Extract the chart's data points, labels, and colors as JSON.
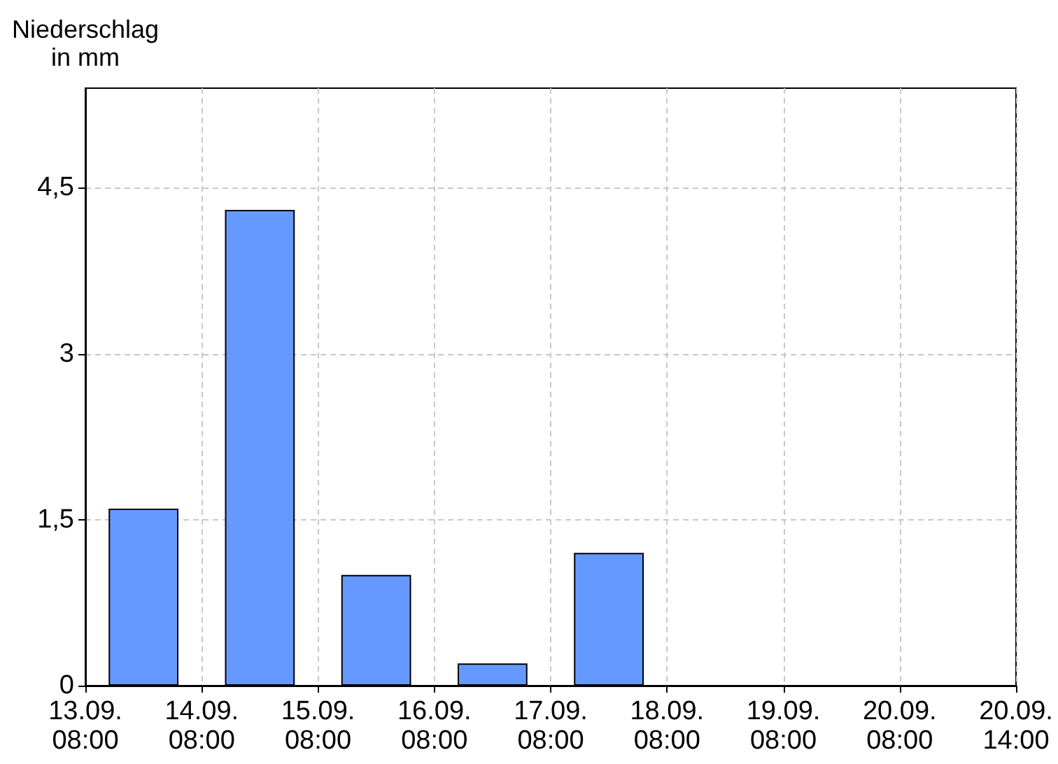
{
  "chart_data": {
    "type": "bar",
    "ylabel": "Niederschlag\nin mm",
    "categories": [
      "13.09.\n08:00",
      null,
      "14.09.\n08:00",
      null,
      "15.09.\n08:00",
      null,
      "16.09.\n08:00",
      null,
      "17.09.\n08:00",
      null,
      "18.09.\n08:00",
      null,
      "19.09.\n08:00",
      null,
      "20.09.\n08:00",
      null,
      "20.09.\n14:00"
    ],
    "values": [
      null,
      1.6,
      null,
      4.3,
      null,
      1.0,
      null,
      0.2,
      null,
      1.2,
      null,
      null,
      null,
      null,
      null,
      null,
      null
    ],
    "color": "#6699ff",
    "ylim": [
      0,
      5.4
    ],
    "yticks": [
      0,
      {
        "value": 1.5,
        "label": "1,5"
      },
      3,
      {
        "value": 4.5,
        "label": "4,5"
      }
    ],
    "grid": true
  }
}
